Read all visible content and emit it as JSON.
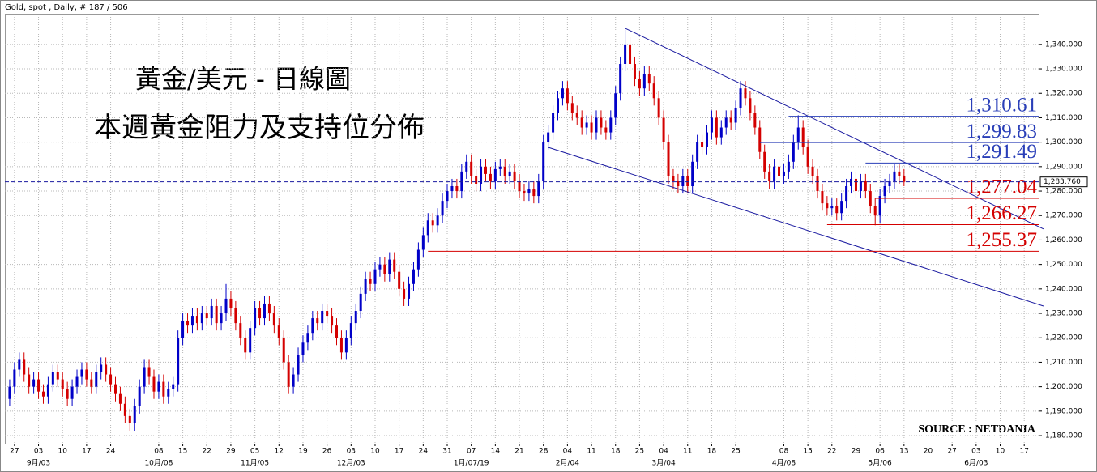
{
  "chart_data": {
    "type": "candlestick",
    "header": "Gold, spot , Daily, # 187 / 506",
    "title": "黃金/美元 - 日線圖",
    "subtitle": "本週黃金阻力及支持位分佈",
    "source": "SOURCE : NETDANIA",
    "up_color": "#0000c8",
    "down_color": "#d40000",
    "xlim": [
      -1,
      214
    ],
    "ylim": [
      1176.7,
      1352.2
    ],
    "grid": true,
    "yticks": [
      {
        "value": 1180,
        "label": "1,180.000"
      },
      {
        "value": 1190,
        "label": "1,190.000"
      },
      {
        "value": 1200,
        "label": "1,200.000"
      },
      {
        "value": 1210,
        "label": "1,210.000"
      },
      {
        "value": 1220,
        "label": "1,220.000"
      },
      {
        "value": 1230,
        "label": "1,230.000"
      },
      {
        "value": 1240,
        "label": "1,240.000"
      },
      {
        "value": 1250,
        "label": "1,250.000"
      },
      {
        "value": 1260,
        "label": "1,260.000"
      },
      {
        "value": 1270,
        "label": "1,270.000"
      },
      {
        "value": 1280,
        "label": "1,280.000"
      },
      {
        "value": 1290,
        "label": "1,290.000"
      },
      {
        "value": 1300,
        "label": "1,300.000"
      },
      {
        "value": 1310,
        "label": "1,310.000"
      },
      {
        "value": 1320,
        "label": "1,320.000"
      },
      {
        "value": 1330,
        "label": "1,330.000"
      },
      {
        "value": 1340,
        "label": "1,340.000"
      }
    ],
    "xticks": [
      {
        "value": 1,
        "label": "27"
      },
      {
        "value": 6,
        "label": "03"
      },
      {
        "value": 11,
        "label": "10"
      },
      {
        "value": 16,
        "label": "17"
      },
      {
        "value": 21,
        "label": "24"
      },
      {
        "value": 31,
        "label": "08"
      },
      {
        "value": 36,
        "label": "15"
      },
      {
        "value": 41,
        "label": "22"
      },
      {
        "value": 46,
        "label": "29"
      },
      {
        "value": 51,
        "label": "05"
      },
      {
        "value": 56,
        "label": "12"
      },
      {
        "value": 61,
        "label": "19"
      },
      {
        "value": 66,
        "label": "26"
      },
      {
        "value": 71,
        "label": "03"
      },
      {
        "value": 76,
        "label": "10"
      },
      {
        "value": 81,
        "label": "17"
      },
      {
        "value": 86,
        "label": "24"
      },
      {
        "value": 91,
        "label": "31"
      },
      {
        "value": 96,
        "label": "07"
      },
      {
        "value": 101,
        "label": "14"
      },
      {
        "value": 106,
        "label": "21"
      },
      {
        "value": 111,
        "label": "28"
      },
      {
        "value": 116,
        "label": "04"
      },
      {
        "value": 121,
        "label": "11"
      },
      {
        "value": 126,
        "label": "18"
      },
      {
        "value": 131,
        "label": "25"
      },
      {
        "value": 136,
        "label": "04"
      },
      {
        "value": 141,
        "label": "11"
      },
      {
        "value": 146,
        "label": "18"
      },
      {
        "value": 151,
        "label": "25"
      },
      {
        "value": 161,
        "label": "08"
      },
      {
        "value": 166,
        "label": "15"
      },
      {
        "value": 171,
        "label": "22"
      },
      {
        "value": 176,
        "label": "29"
      },
      {
        "value": 181,
        "label": "06"
      },
      {
        "value": 186,
        "label": "13"
      },
      {
        "value": 191,
        "label": "20"
      },
      {
        "value": 196,
        "label": "27"
      },
      {
        "value": 201,
        "label": "03"
      },
      {
        "value": 206,
        "label": "10"
      },
      {
        "value": 211,
        "label": "17"
      }
    ],
    "month_labels": [
      {
        "value": 6,
        "label": "9月/03"
      },
      {
        "value": 31,
        "label": "10月/08"
      },
      {
        "value": 51,
        "label": "11月/05"
      },
      {
        "value": 71,
        "label": "12月/03"
      },
      {
        "value": 96,
        "label": "1月/07/19"
      },
      {
        "value": 116,
        "label": "2月/04"
      },
      {
        "value": 136,
        "label": "3月/04"
      },
      {
        "value": 161,
        "label": "4月/08"
      },
      {
        "value": 181,
        "label": "5月/06"
      },
      {
        "value": 201,
        "label": "6月/03"
      }
    ],
    "last": {
      "value": 1283.76,
      "label": "1,283.760"
    },
    "levels": [
      {
        "value": 1310.61,
        "label": "1,310.61",
        "from": 162,
        "color": "#2a3fb8"
      },
      {
        "value": 1299.83,
        "label": "1,299.83",
        "from": 156,
        "color": "#2a3fb8"
      },
      {
        "value": 1291.49,
        "label": "1,291.49",
        "from": 178,
        "color": "#2a3fb8"
      },
      {
        "value": 1277.04,
        "label": "1,277.04",
        "from": 180,
        "color": "#d40000"
      },
      {
        "value": 1266.27,
        "label": "1,266.27",
        "from": 170,
        "color": "#d40000"
      },
      {
        "value": 1255.37,
        "label": "1,255.37",
        "from": 87,
        "color": "#d40000"
      }
    ],
    "trendlines": [
      {
        "x": [
          128,
          215
        ],
        "y": [
          1346.6,
          1264.5
        ]
      },
      {
        "x": [
          112,
          215
        ],
        "y": [
          1297.9,
          1233
        ]
      }
    ],
    "candles": [
      [
        1195,
        1203,
        1192,
        1200
      ],
      [
        1200,
        1210,
        1197,
        1207
      ],
      [
        1207,
        1214,
        1204,
        1211
      ],
      [
        1211,
        1214,
        1202,
        1205
      ],
      [
        1205,
        1208,
        1197,
        1200
      ],
      [
        1200,
        1206,
        1197,
        1203
      ],
      [
        1203,
        1206,
        1195,
        1198
      ],
      [
        1198,
        1201,
        1193,
        1196
      ],
      [
        1196,
        1204,
        1193,
        1201
      ],
      [
        1201,
        1209,
        1198,
        1206
      ],
      [
        1206,
        1209,
        1200,
        1203
      ],
      [
        1203,
        1206,
        1196,
        1199
      ],
      [
        1199,
        1202,
        1192,
        1195
      ],
      [
        1195,
        1203,
        1192,
        1200
      ],
      [
        1200,
        1207,
        1197,
        1204
      ],
      [
        1204,
        1210,
        1201,
        1207
      ],
      [
        1207,
        1210,
        1200,
        1203
      ],
      [
        1203,
        1206,
        1197,
        1200
      ],
      [
        1200,
        1209,
        1197,
        1206
      ],
      [
        1206,
        1212,
        1203,
        1209
      ],
      [
        1209,
        1212,
        1202,
        1205
      ],
      [
        1205,
        1208,
        1198,
        1201
      ],
      [
        1201,
        1204,
        1194,
        1197
      ],
      [
        1197,
        1200,
        1190,
        1193
      ],
      [
        1193,
        1196,
        1185,
        1188
      ],
      [
        1188,
        1191,
        1182,
        1185
      ],
      [
        1185,
        1195,
        1182,
        1192
      ],
      [
        1192,
        1203,
        1189,
        1200
      ],
      [
        1200,
        1211,
        1197,
        1208
      ],
      [
        1208,
        1211,
        1201,
        1204
      ],
      [
        1204,
        1207,
        1195,
        1198
      ],
      [
        1198,
        1205,
        1195,
        1202
      ],
      [
        1202,
        1205,
        1193,
        1196
      ],
      [
        1196,
        1202,
        1193,
        1199
      ],
      [
        1199,
        1204,
        1196,
        1201
      ],
      [
        1201,
        1223,
        1198,
        1220
      ],
      [
        1220,
        1230,
        1217,
        1227
      ],
      [
        1227,
        1230,
        1222,
        1225
      ],
      [
        1225,
        1232,
        1222,
        1229
      ],
      [
        1229,
        1232,
        1223,
        1226
      ],
      [
        1226,
        1233,
        1223,
        1230
      ],
      [
        1230,
        1233,
        1225,
        1228
      ],
      [
        1228,
        1236,
        1225,
        1233
      ],
      [
        1233,
        1236,
        1223,
        1226
      ],
      [
        1226,
        1233,
        1223,
        1230
      ],
      [
        1230,
        1242,
        1227,
        1236
      ],
      [
        1236,
        1239,
        1229,
        1232
      ],
      [
        1232,
        1235,
        1223,
        1226
      ],
      [
        1226,
        1229,
        1217,
        1220
      ],
      [
        1220,
        1223,
        1211,
        1214
      ],
      [
        1214,
        1227,
        1211,
        1224
      ],
      [
        1224,
        1235,
        1221,
        1232
      ],
      [
        1232,
        1235,
        1225,
        1228
      ],
      [
        1228,
        1237,
        1225,
        1234
      ],
      [
        1234,
        1237,
        1227,
        1230
      ],
      [
        1230,
        1233,
        1222,
        1225
      ],
      [
        1225,
        1228,
        1217,
        1220
      ],
      [
        1220,
        1223,
        1207,
        1210
      ],
      [
        1210,
        1213,
        1197,
        1200
      ],
      [
        1200,
        1208,
        1197,
        1205
      ],
      [
        1205,
        1216,
        1202,
        1213
      ],
      [
        1213,
        1221,
        1210,
        1218
      ],
      [
        1218,
        1225,
        1215,
        1222
      ],
      [
        1222,
        1231,
        1219,
        1228
      ],
      [
        1228,
        1231,
        1223,
        1226
      ],
      [
        1226,
        1234,
        1223,
        1231
      ],
      [
        1231,
        1234,
        1226,
        1229
      ],
      [
        1229,
        1232,
        1222,
        1225
      ],
      [
        1225,
        1228,
        1217,
        1220
      ],
      [
        1220,
        1223,
        1211,
        1214
      ],
      [
        1214,
        1223,
        1211,
        1220
      ],
      [
        1220,
        1229,
        1217,
        1226
      ],
      [
        1226,
        1234,
        1223,
        1231
      ],
      [
        1231,
        1241,
        1228,
        1238
      ],
      [
        1238,
        1247,
        1235,
        1244
      ],
      [
        1244,
        1247,
        1239,
        1242
      ],
      [
        1242,
        1251,
        1239,
        1248
      ],
      [
        1248,
        1253,
        1245,
        1250
      ],
      [
        1250,
        1253,
        1243,
        1246
      ],
      [
        1246,
        1255,
        1243,
        1252
      ],
      [
        1252,
        1255,
        1244,
        1247
      ],
      [
        1247,
        1250,
        1237,
        1240
      ],
      [
        1240,
        1243,
        1233,
        1236
      ],
      [
        1236,
        1245,
        1233,
        1242
      ],
      [
        1242,
        1251,
        1239,
        1248
      ],
      [
        1248,
        1259,
        1245,
        1256
      ],
      [
        1256,
        1265,
        1253,
        1262
      ],
      [
        1262,
        1271,
        1259,
        1268
      ],
      [
        1268,
        1271,
        1263,
        1266
      ],
      [
        1266,
        1273,
        1263,
        1270
      ],
      [
        1270,
        1279,
        1267,
        1276
      ],
      [
        1276,
        1283,
        1273,
        1280
      ],
      [
        1280,
        1285,
        1277,
        1282
      ],
      [
        1282,
        1285,
        1277,
        1280
      ],
      [
        1280,
        1291,
        1277,
        1288
      ],
      [
        1288,
        1295,
        1285,
        1292
      ],
      [
        1292,
        1295,
        1283,
        1286
      ],
      [
        1286,
        1289,
        1280,
        1283
      ],
      [
        1283,
        1293,
        1280,
        1290
      ],
      [
        1290,
        1293,
        1284,
        1287
      ],
      [
        1287,
        1290,
        1281,
        1284
      ],
      [
        1284,
        1292,
        1281,
        1289
      ],
      [
        1289,
        1293,
        1286,
        1290
      ],
      [
        1290,
        1293,
        1283,
        1286
      ],
      [
        1286,
        1291,
        1283,
        1288
      ],
      [
        1288,
        1291,
        1281,
        1284
      ],
      [
        1284,
        1287,
        1277,
        1280
      ],
      [
        1280,
        1283,
        1276,
        1279
      ],
      [
        1279,
        1284,
        1276,
        1281
      ],
      [
        1281,
        1284,
        1275,
        1278
      ],
      [
        1278,
        1287,
        1275,
        1284
      ],
      [
        1284,
        1303,
        1281,
        1300
      ],
      [
        1300,
        1307,
        1297,
        1304
      ],
      [
        1304,
        1315,
        1301,
        1312
      ],
      [
        1312,
        1321,
        1309,
        1318
      ],
      [
        1318,
        1325,
        1315,
        1322
      ],
      [
        1322,
        1325,
        1313,
        1316
      ],
      [
        1316,
        1319,
        1309,
        1312
      ],
      [
        1312,
        1315,
        1307,
        1310
      ],
      [
        1310,
        1313,
        1303,
        1306
      ],
      [
        1306,
        1311,
        1303,
        1308
      ],
      [
        1308,
        1311,
        1301,
        1304
      ],
      [
        1304,
        1313,
        1301,
        1310
      ],
      [
        1310,
        1313,
        1303,
        1306
      ],
      [
        1306,
        1309,
        1301,
        1304
      ],
      [
        1304,
        1313,
        1301,
        1310
      ],
      [
        1310,
        1323,
        1307,
        1320
      ],
      [
        1320,
        1335,
        1317,
        1332
      ],
      [
        1332,
        1346,
        1329,
        1340
      ],
      [
        1340,
        1343,
        1329,
        1332
      ],
      [
        1332,
        1335,
        1323,
        1326
      ],
      [
        1326,
        1329,
        1319,
        1322
      ],
      [
        1322,
        1331,
        1319,
        1328
      ],
      [
        1328,
        1331,
        1321,
        1324
      ],
      [
        1324,
        1327,
        1315,
        1318
      ],
      [
        1318,
        1321,
        1307,
        1310
      ],
      [
        1310,
        1313,
        1297,
        1300
      ],
      [
        1300,
        1303,
        1283,
        1286
      ],
      [
        1286,
        1289,
        1281,
        1284
      ],
      [
        1284,
        1287,
        1279,
        1282
      ],
      [
        1282,
        1289,
        1279,
        1286
      ],
      [
        1286,
        1289,
        1279,
        1282
      ],
      [
        1282,
        1295,
        1279,
        1292
      ],
      [
        1292,
        1303,
        1289,
        1300
      ],
      [
        1300,
        1303,
        1295,
        1298
      ],
      [
        1298,
        1307,
        1295,
        1304
      ],
      [
        1304,
        1313,
        1301,
        1310
      ],
      [
        1310,
        1313,
        1299,
        1302
      ],
      [
        1302,
        1309,
        1299,
        1306
      ],
      [
        1306,
        1313,
        1303,
        1310
      ],
      [
        1310,
        1313,
        1305,
        1308
      ],
      [
        1308,
        1317,
        1305,
        1314
      ],
      [
        1314,
        1325,
        1311,
        1322
      ],
      [
        1322,
        1325,
        1315,
        1318
      ],
      [
        1318,
        1321,
        1309,
        1312
      ],
      [
        1312,
        1315,
        1303,
        1306
      ],
      [
        1306,
        1309,
        1293,
        1296
      ],
      [
        1296,
        1299,
        1285,
        1288
      ],
      [
        1288,
        1291,
        1281,
        1284
      ],
      [
        1284,
        1293,
        1281,
        1290
      ],
      [
        1290,
        1293,
        1283,
        1286
      ],
      [
        1286,
        1291,
        1283,
        1288
      ],
      [
        1288,
        1295,
        1285,
        1292
      ],
      [
        1292,
        1303,
        1289,
        1300
      ],
      [
        1300,
        1311,
        1297,
        1306
      ],
      [
        1306,
        1309,
        1295,
        1298
      ],
      [
        1298,
        1301,
        1287,
        1290
      ],
      [
        1290,
        1293,
        1283,
        1286
      ],
      [
        1286,
        1289,
        1277,
        1280
      ],
      [
        1280,
        1283,
        1272,
        1275
      ],
      [
        1275,
        1278,
        1270,
        1273
      ],
      [
        1273,
        1277,
        1270,
        1274
      ],
      [
        1274,
        1277,
        1268,
        1271
      ],
      [
        1271,
        1279,
        1268,
        1276
      ],
      [
        1276,
        1285,
        1273,
        1282
      ],
      [
        1282,
        1288,
        1279,
        1285
      ],
      [
        1285,
        1288,
        1277,
        1280
      ],
      [
        1280,
        1287,
        1277,
        1284
      ],
      [
        1284,
        1287,
        1277,
        1280
      ],
      [
        1280,
        1283,
        1271,
        1274
      ],
      [
        1274,
        1277,
        1266,
        1270
      ],
      [
        1270,
        1281,
        1267,
        1278
      ],
      [
        1278,
        1285,
        1275,
        1282
      ],
      [
        1282,
        1287,
        1279,
        1284
      ],
      [
        1284,
        1291,
        1281,
        1288
      ],
      [
        1288,
        1291,
        1283,
        1286
      ],
      [
        1286,
        1289,
        1282,
        1283.76
      ]
    ]
  }
}
